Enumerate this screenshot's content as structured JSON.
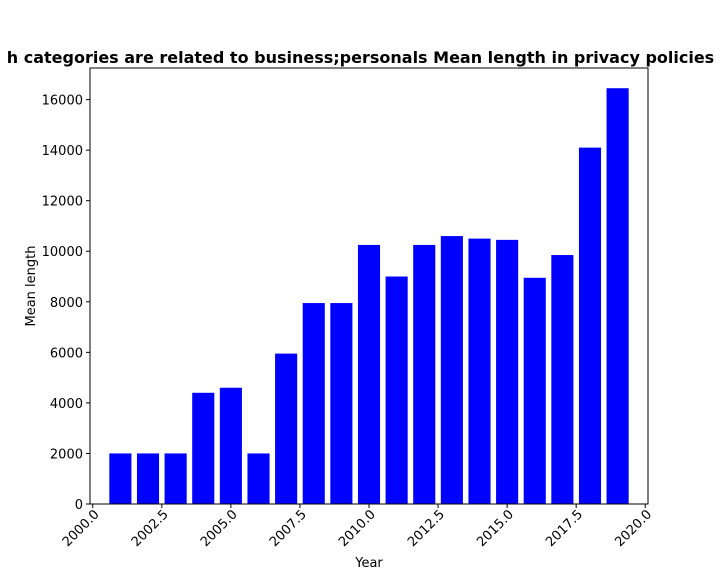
{
  "chart_data": {
    "type": "bar",
    "title": "h categories are related to business;personals Mean length in privacy policies b",
    "xlabel": "Year",
    "ylabel": "Mean length",
    "x": [
      2001,
      2002,
      2003,
      2004,
      2005,
      2006,
      2007,
      2008,
      2009,
      2010,
      2011,
      2012,
      2013,
      2014,
      2015,
      2016,
      2017,
      2018,
      2019
    ],
    "values": [
      2000,
      2000,
      2000,
      4400,
      4600,
      2000,
      5950,
      7950,
      7950,
      10250,
      9000,
      10250,
      10600,
      10500,
      10450,
      8950,
      9850,
      14100,
      16450
    ],
    "xlim": [
      1999.9,
      2020.1
    ],
    "ylim": [
      0,
      17250
    ],
    "xticks": [
      "2000.0",
      "2002.5",
      "2005.0",
      "2007.5",
      "2010.0",
      "2012.5",
      "2015.0",
      "2017.5",
      "2020.0"
    ],
    "yticks": [
      "0",
      "2000",
      "4000",
      "6000",
      "8000",
      "10000",
      "12000",
      "14000",
      "16000"
    ],
    "bar_color": "#0000ff",
    "grid": false,
    "legend": false
  }
}
